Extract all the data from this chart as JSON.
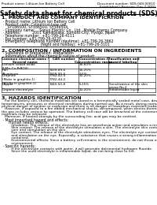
{
  "top_left_text": "Product name: Lithium Ion Battery Cell",
  "top_right_line1": "Document number: SDS-049-00010",
  "top_right_line2": "Established / Revision: Dec.7.2010",
  "title": "Safety data sheet for chemical products (SDS)",
  "section1_header": "1. PRODUCT AND COMPANY IDENTIFICATION",
  "section1_lines": [
    " · Product name: Lithium Ion Battery Cell",
    " · Product code: Cylindrical-type cell",
    "     SY18650U, SY18650U, SY18650A",
    " · Company name:    Sanyo Electric Co., Ltd., Mobile Energy Company",
    " · Address:          2001 Kamikosaka, Sumoto-City, Hyogo, Japan",
    " · Telephone number:  +81-799-26-4111",
    " · Fax number: +81-799-26-4120",
    " · Emergency telephone number (daytime): +81-799-26-3962",
    "                                 (Night and holiday): +81-799-26-3101"
  ],
  "section2_header": "2. COMPOSITION / INFORMATION ON INGREDIENTS",
  "section2_sub1": " · Substance or preparation: Preparation",
  "section2_sub2": " · Information about the chemical nature of product:",
  "table_col_headers": [
    "Common chemical name /\nSeveral name",
    "CAS number",
    "Concentration /\nConcentration range",
    "Classification and\nhazard labeling"
  ],
  "table_rows": [
    [
      "Lithium cobalt oxide\n(LiMn-Co-PrBO4)",
      "-",
      "30-60%",
      "-"
    ],
    [
      "Iron\nAluminum",
      "7439-89-6\n7429-90-5",
      "15-25%\n2-6%",
      "-\n-"
    ],
    [
      "Graphite\n(Make in graphite-1)\n(All-No in graphite-1)",
      "7782-42-5\n7782-44-2",
      "10-20%",
      "-"
    ],
    [
      "Copper",
      "7440-50-8",
      "5-15%",
      "Sensitization of the skin\ngroup No.2"
    ],
    [
      "Organic electrolyte",
      "-",
      "10-20%",
      "Inflammable liquid"
    ]
  ],
  "section3_header": "3. HAZARDS IDENTIFICATION",
  "section3_para1": "   For the battery cell, chemical materials are stored in a hermetically sealed metal case, designed to withstand",
  "section3_para2": "temperatures, pressures or electrical conditions during normal use. As a result, during normal use, there is no",
  "section3_para3": "physical danger of ignition or explosion and there is no danger of hazardous materials leakage.",
  "section3_para4": "   However, if exposed to a fire added mechanical shocks, decomposed, when electro-thermal injury may arise,",
  "section3_para5": "the gas includes various be operated. The battery cell case will be breached at the extremes, hazardous",
  "section3_para6": "materials may be released.",
  "section3_para7": "   Moreover, if heated strongly by the surrounding fire, acid gas may be emitted.",
  "most_important": " · Most important hazard and effects:",
  "human_health": "      Human health effects:",
  "inhalation": "         Inhalation: The release of the electrolyte has an anesthesia action and stimulates a respiratory tract.",
  "skin1": "         Skin contact: The release of the electrolyte stimulates a skin. The electrolyte skin contact causes a",
  "skin2": "         sore and stimulation on the skin.",
  "eye1": "         Eye contact: The release of the electrolyte stimulates eyes. The electrolyte eye contact causes a sore",
  "eye2": "         and stimulation on the eye. Especially, a substance that causes a strong inflammation of the eyes is",
  "eye3": "         contained.",
  "env1": "         Environmental effects: Since a battery cell remains in the environment, do not throw out it into the",
  "env2": "         environment.",
  "specific_hazards": " · Specific hazards:",
  "spec1": "         If the electrolyte contacts with water, it will generate detrimental hydrogen fluoride.",
  "spec2": "         Since the used electrolyte is inflammable liquid, do not bring close to fire.",
  "bg_color": "#ffffff"
}
